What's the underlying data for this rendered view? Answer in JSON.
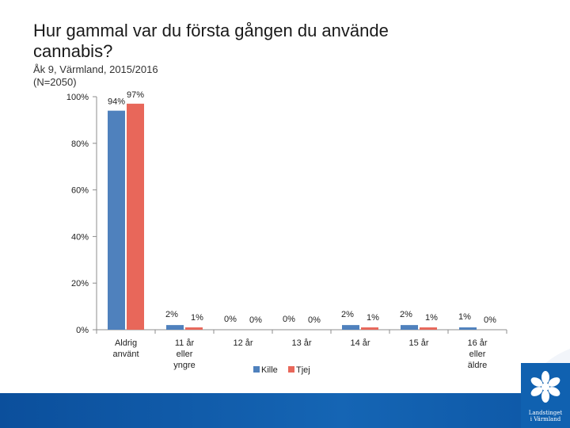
{
  "chart_data": {
    "type": "bar",
    "title": "Hur gammal var du första gången du använde cannabis?",
    "subtitle": "Åk 9, Värmland, 2015/2016",
    "n_label": "(N=2050)",
    "categories": [
      "Aldrig använt",
      "11 år eller yngre",
      "12 år",
      "13 år",
      "14 år",
      "15 år",
      "16 år eller äldre"
    ],
    "series": [
      {
        "name": "Kille",
        "color": "#4f81bd",
        "values": [
          94,
          2,
          0,
          0,
          2,
          2,
          1
        ],
        "labels": [
          "94%",
          "2%",
          "0%",
          "0%",
          "2%",
          "2%",
          "1%"
        ]
      },
      {
        "name": "Tjej",
        "color": "#e8675a",
        "values": [
          97,
          1,
          0,
          0,
          1,
          1,
          0
        ],
        "labels": [
          "97%",
          "1%",
          "0%",
          "0%",
          "1%",
          "1%",
          "0%"
        ]
      }
    ],
    "yticks": [
      0,
      20,
      40,
      60,
      80,
      100
    ],
    "ytick_labels": [
      "0%",
      "20%",
      "40%",
      "60%",
      "80%",
      "100%"
    ],
    "ylim": [
      0,
      100
    ],
    "xlabel": "",
    "ylabel": "",
    "grid": false,
    "legend_position": "bottom"
  },
  "logo": {
    "name": "Landstinget i Värmland",
    "line1": "Landstinget",
    "line2": "i Värmland"
  }
}
